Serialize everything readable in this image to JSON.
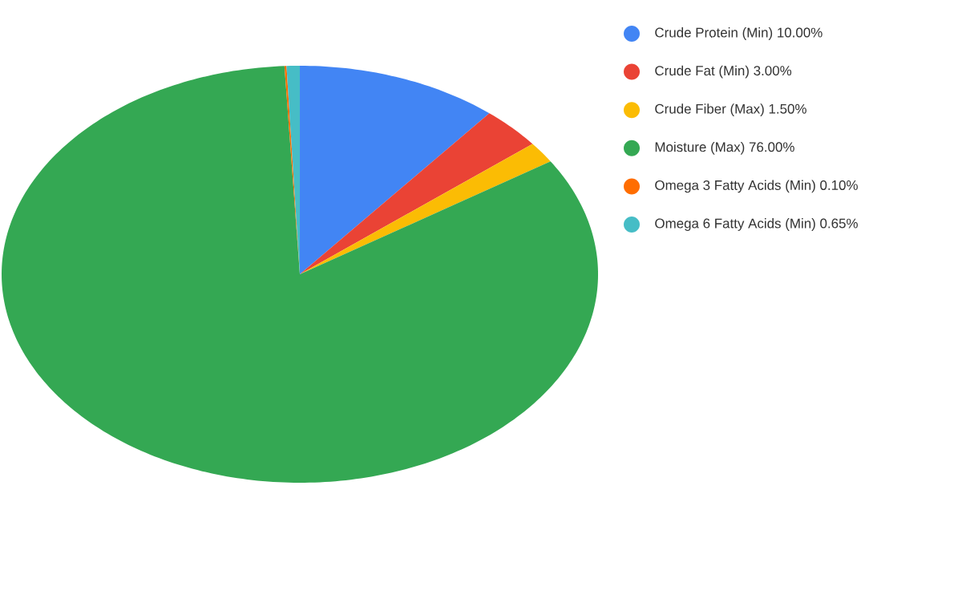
{
  "chart_data": {
    "type": "pie",
    "categories": [
      "Crude Protein (Min) 10.00%",
      "Crude Fat (Min) 3.00%",
      "Crude Fiber (Max) 1.50%",
      "Moisture (Max) 76.00%",
      "Omega 3 Fatty Acids (Min) 0.10%",
      "Omega 6 Fatty Acids (Min) 0.65%"
    ],
    "values": [
      10.0,
      3.0,
      1.5,
      76.0,
      0.1,
      0.65
    ],
    "colors": [
      "#4285f4",
      "#ea4335",
      "#fbbc04",
      "#34a853",
      "#ff6d01",
      "#46bdc6"
    ],
    "legend": "right"
  }
}
